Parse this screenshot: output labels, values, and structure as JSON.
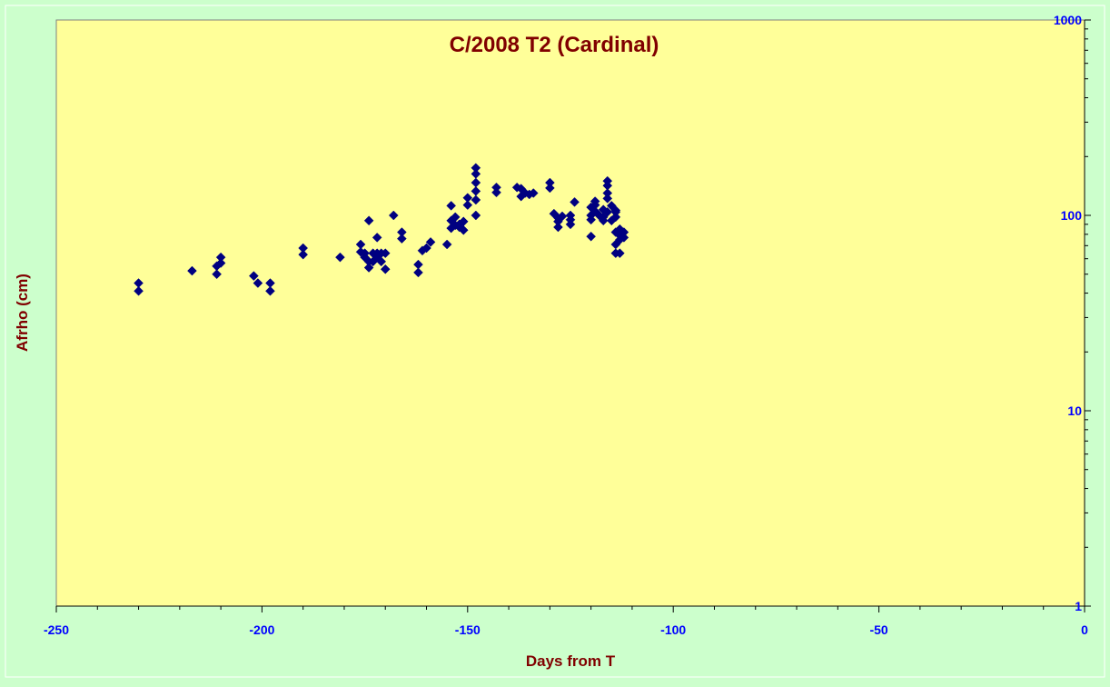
{
  "chart_data": {
    "type": "scatter",
    "title": "C/2008 T2 (Cardinal)",
    "xlabel": "Days from T",
    "ylabel": "Afrho (cm)",
    "xlim": [
      -250,
      0
    ],
    "ylim": [
      1,
      1000
    ],
    "yscale": "log",
    "x_ticks": [
      -250,
      -200,
      -150,
      -100,
      -50,
      0
    ],
    "y_ticks": [
      1,
      10,
      100,
      1000
    ],
    "grid": false,
    "legend": "none",
    "colors": {
      "background": "#ccffcc",
      "plot_area": "#ffff99",
      "marker": "#000080",
      "title": "#800000",
      "axis_label": "#800000",
      "tick_label": "#0000ff"
    },
    "points": [
      [
        -230,
        41
      ],
      [
        -230,
        45
      ],
      [
        -217,
        52
      ],
      [
        -211,
        50
      ],
      [
        -211,
        55
      ],
      [
        -210,
        57
      ],
      [
        -210,
        61
      ],
      [
        -202,
        49
      ],
      [
        -201,
        45
      ],
      [
        -198,
        41
      ],
      [
        -198,
        45
      ],
      [
        -190,
        63
      ],
      [
        -190,
        68
      ],
      [
        -181,
        61
      ],
      [
        -176,
        65
      ],
      [
        -176,
        71
      ],
      [
        -175,
        61
      ],
      [
        -175,
        64
      ],
      [
        -174,
        94
      ],
      [
        -174,
        58
      ],
      [
        -174,
        54
      ],
      [
        -173,
        64
      ],
      [
        -173,
        58
      ],
      [
        -172,
        64
      ],
      [
        -172,
        61
      ],
      [
        -172,
        77
      ],
      [
        -171,
        58
      ],
      [
        -171,
        64
      ],
      [
        -170,
        53
      ],
      [
        -170,
        64
      ],
      [
        -168,
        100
      ],
      [
        -166,
        76
      ],
      [
        -166,
        82
      ],
      [
        -162,
        51
      ],
      [
        -162,
        56
      ],
      [
        -161,
        66
      ],
      [
        -160,
        68
      ],
      [
        -159,
        73
      ],
      [
        -155,
        71
      ],
      [
        -154,
        112
      ],
      [
        -154,
        94
      ],
      [
        -154,
        86
      ],
      [
        -153,
        89
      ],
      [
        -153,
        98
      ],
      [
        -152,
        90
      ],
      [
        -152,
        87
      ],
      [
        -151,
        93
      ],
      [
        -151,
        84
      ],
      [
        -150,
        113
      ],
      [
        -150,
        123
      ],
      [
        -148,
        175
      ],
      [
        -148,
        163
      ],
      [
        -148,
        147
      ],
      [
        -148,
        133
      ],
      [
        -148,
        120
      ],
      [
        -148,
        100
      ],
      [
        -143,
        139
      ],
      [
        -143,
        131
      ],
      [
        -138,
        139
      ],
      [
        -137,
        137
      ],
      [
        -137,
        125
      ],
      [
        -136,
        130
      ],
      [
        -135,
        128
      ],
      [
        -134,
        130
      ],
      [
        -130,
        147
      ],
      [
        -130,
        138
      ],
      [
        -129,
        102
      ],
      [
        -128,
        97
      ],
      [
        -128,
        93
      ],
      [
        -128,
        87
      ],
      [
        -127,
        99
      ],
      [
        -125,
        95
      ],
      [
        -125,
        100
      ],
      [
        -125,
        90
      ],
      [
        -124,
        117
      ],
      [
        -120,
        78
      ],
      [
        -120,
        95
      ],
      [
        -120,
        100
      ],
      [
        -120,
        110
      ],
      [
        -119,
        105
      ],
      [
        -119,
        113
      ],
      [
        -119,
        118
      ],
      [
        -118,
        100
      ],
      [
        -117,
        94
      ],
      [
        -117,
        107
      ],
      [
        -117,
        98
      ],
      [
        -116,
        130
      ],
      [
        -116,
        150
      ],
      [
        -116,
        142
      ],
      [
        -116,
        122
      ],
      [
        -116,
        104
      ],
      [
        -115,
        94
      ],
      [
        -115,
        112
      ],
      [
        -114,
        104
      ],
      [
        -114,
        98
      ],
      [
        -114,
        106
      ],
      [
        -114,
        82
      ],
      [
        -114,
        71
      ],
      [
        -114,
        64
      ],
      [
        -113,
        75
      ],
      [
        -113,
        79
      ],
      [
        -113,
        85
      ],
      [
        -113,
        64
      ],
      [
        -112,
        82
      ],
      [
        -112,
        77
      ]
    ]
  }
}
